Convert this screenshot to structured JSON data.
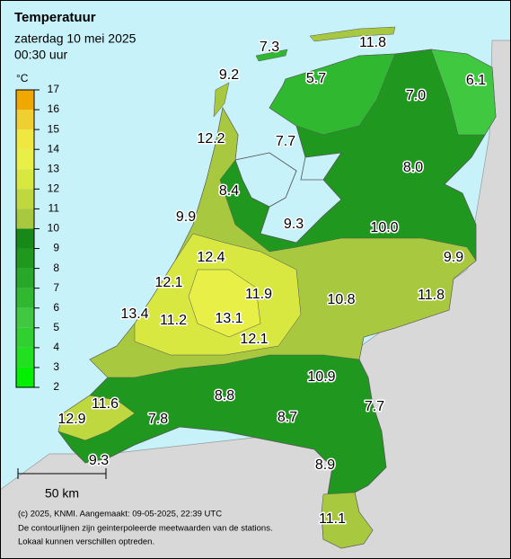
{
  "header": {
    "title": "Temperatuur",
    "date": "zaterdag 10 mei 2025",
    "time": "00:30 uur"
  },
  "legend": {
    "unit": "°C",
    "ticks": [
      2,
      3,
      4,
      5,
      6,
      7,
      8,
      9,
      10,
      11,
      12,
      13,
      14,
      15,
      16,
      17
    ],
    "colors": [
      "#00f000",
      "#20e020",
      "#30d030",
      "#40c840",
      "#30b830",
      "#28a828",
      "#209820",
      "#188818",
      "#a8c840",
      "#c0d840",
      "#d8e840",
      "#e8f048",
      "#f0e840",
      "#f0d030",
      "#f0a800"
    ]
  },
  "stations": [
    "7.3",
    "11.8",
    "9.2",
    "5.7",
    "7.0",
    "6.1",
    "12.2",
    "7.7",
    "8.0",
    "8.4",
    "9.9",
    "9.3",
    "10.0",
    "9.9",
    "12.4",
    "12.1",
    "11.9",
    "10.8",
    "11.8",
    "13.4",
    "11.2",
    "13.1",
    "12.1",
    "10.9",
    "8.8",
    "7.7",
    "11.6",
    "8.7",
    "12.9",
    "7.8",
    "9.3",
    "8.9",
    "11.1"
  ],
  "scale": "50 km",
  "footer": [
    "(c) 2025, KNMI. Aangemaakt: 09-05-2025, 22:39 UTC",
    "De contourlijnen zijn geinterpoleerde meetwaarden van de stations.",
    "Lokaal kunnen verschillen optreden."
  ]
}
